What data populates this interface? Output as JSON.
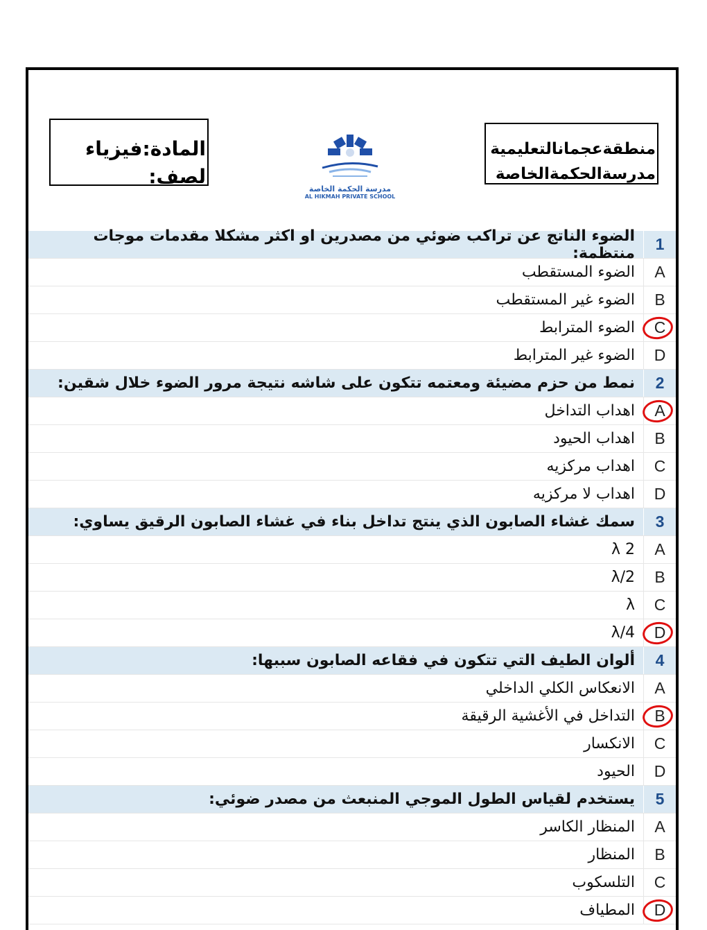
{
  "header": {
    "subject_line": "المادة:فيزياء",
    "class_line": "لصف:",
    "district_line": "منطقةعجمانالتعليمية",
    "school_line": "مدرسةالحكمةالخاصة",
    "logo_ar": "مدرسة الحكمة الخاصة",
    "logo_en": "AL HIKMAH PRIVATE SCHOOL",
    "logo_color": "#1f4fa8"
  },
  "questions": [
    {
      "num": "1",
      "text": "الضوء الناتج عن تراكب ضوئي من مصدرين او اكثر مشكلا مقدمات موجات منتظمة:",
      "circled": "C",
      "options": [
        {
          "letter": "A",
          "text": "الضوء المستقطب"
        },
        {
          "letter": "B",
          "text": "الضوء غير المستقطب"
        },
        {
          "letter": "C",
          "text": "الضوء المترابط"
        },
        {
          "letter": "D",
          "text": "الضوء غير المترابط"
        }
      ]
    },
    {
      "num": "2",
      "text": "نمط من حزم مضيئة ومعتمه تتكون على شاشه نتيجة مرور الضوء خلال شقين:",
      "circled": "A",
      "options": [
        {
          "letter": "A",
          "text": "اهداب التداخل"
        },
        {
          "letter": "B",
          "text": "اهداب الحيود"
        },
        {
          "letter": "C",
          "text": "اهداب مركزيه"
        },
        {
          "letter": "D",
          "text": "اهداب لا مركزيه"
        }
      ]
    },
    {
      "num": "3",
      "text": "سمك غشاء الصابون الذي ينتج تداخل بناء في غشاء الصابون الرقيق يساوي:",
      "circled": "D",
      "options": [
        {
          "letter": "A",
          "text": "2 λ"
        },
        {
          "letter": "B",
          "text": "λ/2"
        },
        {
          "letter": "C",
          "text": "λ"
        },
        {
          "letter": "D",
          "text": "λ/4"
        }
      ]
    },
    {
      "num": "4",
      "text": "ألوان الطيف التي تتكون في فقاعه الصابون سببها:",
      "circled": "B",
      "options": [
        {
          "letter": "A",
          "text": "الانعكاس الكلي الداخلي"
        },
        {
          "letter": "B",
          "text": "التداخل في الأغشية الرقيقة"
        },
        {
          "letter": "C",
          "text": "الانكسار"
        },
        {
          "letter": "D",
          "text": "الحيود"
        }
      ]
    },
    {
      "num": "5",
      "text": "يستخدم لقياس الطول الموجي المنبعث من مصدر ضوئي:",
      "circled": "D",
      "options": [
        {
          "letter": "A",
          "text": "المنظار الكاسر"
        },
        {
          "letter": "B",
          "text": "المنظار"
        },
        {
          "letter": "C",
          "text": "التلسكوب"
        },
        {
          "letter": "D",
          "text": "المطياف"
        }
      ]
    }
  ],
  "colors": {
    "question_row": "#dbe9f3",
    "answer_mark": "#e01010",
    "question_number": "#1f4e8c"
  }
}
